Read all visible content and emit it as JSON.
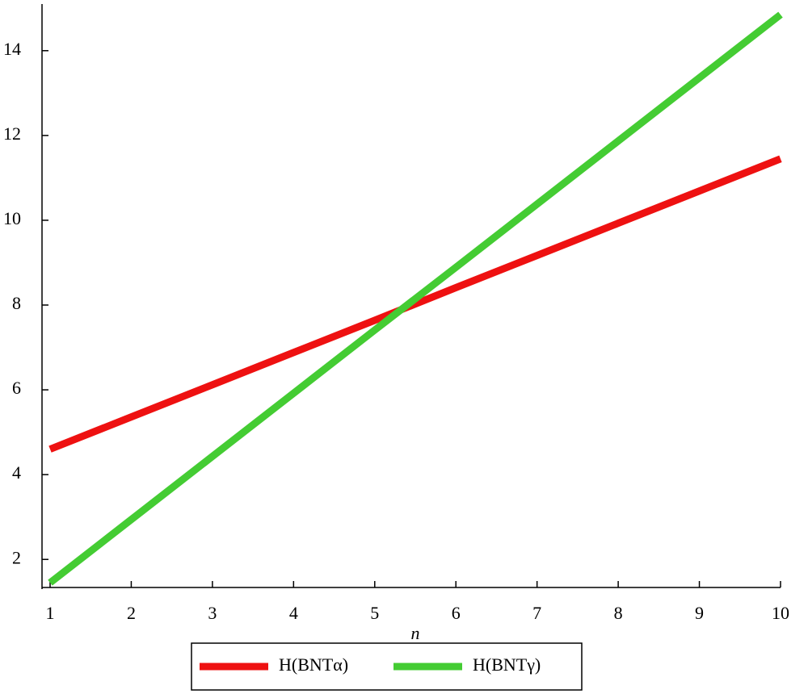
{
  "chart_data": {
    "type": "line",
    "x_label": "n",
    "x": [
      1,
      2,
      3,
      4,
      5,
      6,
      7,
      8,
      9,
      10
    ],
    "series": [
      {
        "name": "H(BNTα)",
        "color": "#ee1111",
        "values": [
          4.6,
          5.36,
          6.12,
          6.88,
          7.64,
          8.41,
          9.17,
          9.93,
          10.69,
          11.45
        ]
      },
      {
        "name": "H(BNTγ)",
        "color": "#44cc33",
        "values": [
          1.45,
          2.94,
          4.43,
          5.92,
          7.41,
          8.89,
          10.38,
          11.87,
          13.36,
          14.85
        ]
      }
    ],
    "xlim": [
      1,
      10
    ],
    "xticks": [
      1,
      2,
      3,
      4,
      5,
      6,
      7,
      8,
      9,
      10
    ],
    "ylim": [
      1.3,
      15.1
    ],
    "yticks": [
      2,
      4,
      6,
      8,
      10,
      12,
      14
    ],
    "grid": false,
    "legend": "bottom"
  }
}
